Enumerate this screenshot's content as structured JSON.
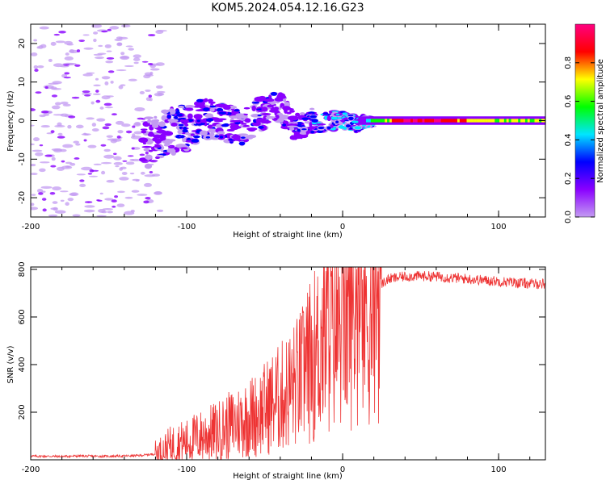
{
  "title": "KOM5.2024.054.12.16.G23",
  "chart_data": [
    {
      "type": "heatmap",
      "xlabel": "Height of straight line (km)",
      "ylabel": "Frequency (Hz)",
      "xlim": [
        -200,
        130
      ],
      "ylim": [
        -25,
        25
      ],
      "xticks": [
        "-200",
        "-100",
        "0",
        "100"
      ],
      "yticks": [
        "-20",
        "-10",
        "0",
        "10",
        "20"
      ],
      "colorbar": {
        "label": "Normalized spectral amplitude",
        "range": [
          0,
          1
        ],
        "ticks": [
          "0.0",
          "0.2",
          "0.4",
          "0.6",
          "0.8"
        ],
        "colors": [
          "#ffffff",
          "#c39bf2",
          "#8a00ff",
          "#0000ff",
          "#00e5ff",
          "#00ff00",
          "#ffff00",
          "#ff0000",
          "#ff0080"
        ]
      },
      "ridge": [
        {
          "x": -120,
          "f": -5,
          "amp": 0.25
        },
        {
          "x": -110,
          "f": -3,
          "amp": 0.3
        },
        {
          "x": -100,
          "f": -2,
          "amp": 0.35
        },
        {
          "x": -85,
          "f": 1,
          "amp": 0.3
        },
        {
          "x": -65,
          "f": -2,
          "amp": 0.3
        },
        {
          "x": -55,
          "f": 1,
          "amp": 0.3
        },
        {
          "x": -40,
          "f": 4,
          "amp": 0.25
        },
        {
          "x": -30,
          "f": -2,
          "amp": 0.3
        },
        {
          "x": -20,
          "f": 0,
          "amp": 0.35
        },
        {
          "x": -10,
          "f": 0,
          "amp": 0.4
        },
        {
          "x": 0,
          "f": 0,
          "amp": 0.5
        },
        {
          "x": 10,
          "f": -1,
          "amp": 0.45
        },
        {
          "x": 20,
          "f": 0,
          "amp": 0.6
        },
        {
          "x": 40,
          "f": 0,
          "amp": 0.9
        },
        {
          "x": 60,
          "f": 0,
          "amp": 0.95
        },
        {
          "x": 80,
          "f": 0,
          "amp": 0.8
        },
        {
          "x": 100,
          "f": 0,
          "amp": 0.7
        },
        {
          "x": 120,
          "f": 0,
          "amp": 0.7
        }
      ]
    },
    {
      "type": "line",
      "xlabel": "Height of straight line (km)",
      "ylabel": "SNR (v/v)",
      "xlim": [
        -200,
        130
      ],
      "ylim": [
        0,
        810
      ],
      "xticks": [
        "-200",
        "-100",
        "0",
        "100"
      ],
      "yticks": [
        "200",
        "400",
        "600",
        "800"
      ],
      "color": "#ee3333",
      "x": [
        -200,
        -190,
        -180,
        -170,
        -160,
        -150,
        -140,
        -130,
        -120,
        -115,
        -110,
        -105,
        -100,
        -95,
        -90,
        -85,
        -80,
        -75,
        -70,
        -65,
        -60,
        -55,
        -50,
        -45,
        -40,
        -35,
        -30,
        -25,
        -20,
        -15,
        -10,
        -5,
        0,
        5,
        10,
        15,
        20,
        25,
        30,
        40,
        50,
        60,
        70,
        80,
        90,
        100,
        110,
        120,
        130
      ],
      "y": [
        15,
        15,
        14,
        16,
        15,
        15,
        16,
        18,
        25,
        40,
        60,
        70,
        75,
        90,
        100,
        110,
        120,
        135,
        150,
        165,
        180,
        190,
        215,
        240,
        260,
        290,
        320,
        360,
        420,
        470,
        530,
        580,
        610,
        640,
        660,
        620,
        690,
        740,
        760,
        770,
        772,
        770,
        765,
        760,
        755,
        750,
        745,
        740,
        740
      ]
    }
  ]
}
